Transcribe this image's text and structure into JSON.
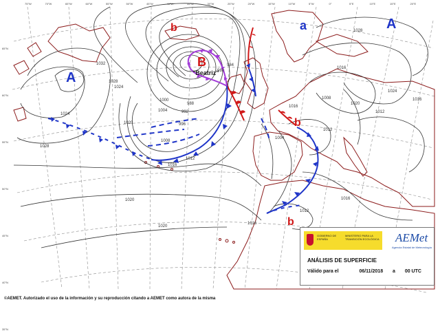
{
  "map": {
    "pressure_centers": [
      {
        "type": "high",
        "letter": "A"
      },
      {
        "type": "high",
        "letter": "A"
      },
      {
        "type": "high",
        "letter": "a"
      },
      {
        "type": "low",
        "letter": "B"
      },
      {
        "type": "low",
        "letter": "b"
      },
      {
        "type": "low",
        "letter": "b"
      },
      {
        "type": "low",
        "letter": "b"
      }
    ],
    "storm_name": "\"Beatriz\"",
    "isobar_labels": [
      "1032",
      "1028",
      "1024",
      "1020",
      "1016",
      "1012",
      "1008",
      "1004",
      "1000",
      "996",
      "992",
      "988",
      "984",
      "980",
      "1028",
      "1024",
      "1020",
      "1016",
      "1016",
      "1016",
      "1012",
      "1012",
      "1016",
      "1020",
      "1024",
      "1016",
      "1008",
      "1004",
      "1020",
      "1028",
      "1012"
    ],
    "lon_labels": [
      "75°W",
      "70°W",
      "65°W",
      "60°W",
      "55°W",
      "50°W",
      "45°W",
      "40°W",
      "35°W",
      "30°W",
      "25°W",
      "20°W",
      "15°W",
      "10°W",
      "5°W",
      "0°",
      "5°E",
      "10°E",
      "15°E",
      "20°E"
    ],
    "lat_labels": [
      "65°N",
      "60°N",
      "55°N",
      "50°N",
      "45°N",
      "40°N",
      "35°N"
    ],
    "colors": {
      "high": "#1f35c8",
      "low": "#d01818",
      "cold_front": "#1f35c8",
      "warm_front": "#d01818",
      "occluded_front": "#a23ad8",
      "land": "#8b1a1a",
      "isobar": "#333333",
      "grid": "#8a8a8a"
    }
  },
  "info_box": {
    "gov_line": "GOBIERNO DE ESPAÑA",
    "ministry_line": "MINISTERIO PARA LA TRANSICIÓN ECOLÓGICA",
    "logo_text": "AEMet",
    "agency_line": "Agencia Estatal de Meteorología",
    "title": "ANÁLISIS DE SUPERFICIE",
    "valid_label": "Válido para el",
    "valid_date": "06/11/2018",
    "valid_sep": "a",
    "valid_time": "00 UTC"
  },
  "footer": {
    "credit": "©AEMET. Autorizado el uso de la información y su reproducción citando a AEMET como autora de la misma"
  }
}
